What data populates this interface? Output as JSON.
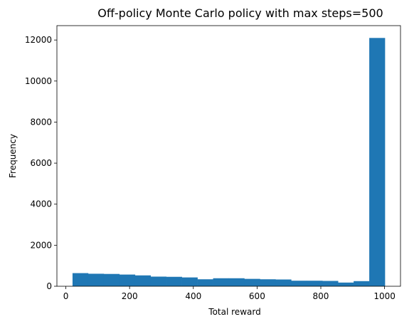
{
  "chart_data": {
    "type": "bar",
    "subtype": "histogram",
    "title": "Off-policy Monte Carlo policy with max steps=500",
    "xlabel": "Total reward",
    "ylabel": "Frequency",
    "bin_edges": [
      21,
      70,
      119,
      168,
      217,
      266,
      315,
      364,
      413,
      462,
      511,
      560,
      609,
      658,
      707,
      756,
      805,
      854,
      903,
      952,
      1001
    ],
    "values": [
      640,
      610,
      600,
      570,
      530,
      470,
      460,
      430,
      340,
      390,
      390,
      360,
      340,
      330,
      270,
      270,
      260,
      180,
      250,
      12100
    ],
    "xlim": [
      -28,
      1050
    ],
    "ylim": [
      0,
      12700
    ],
    "xticks": [
      0,
      200,
      400,
      600,
      800,
      1000
    ],
    "yticks": [
      0,
      2000,
      4000,
      6000,
      8000,
      10000,
      12000
    ],
    "bar_color": "#1f77b4",
    "grid": false,
    "legend": "none"
  }
}
